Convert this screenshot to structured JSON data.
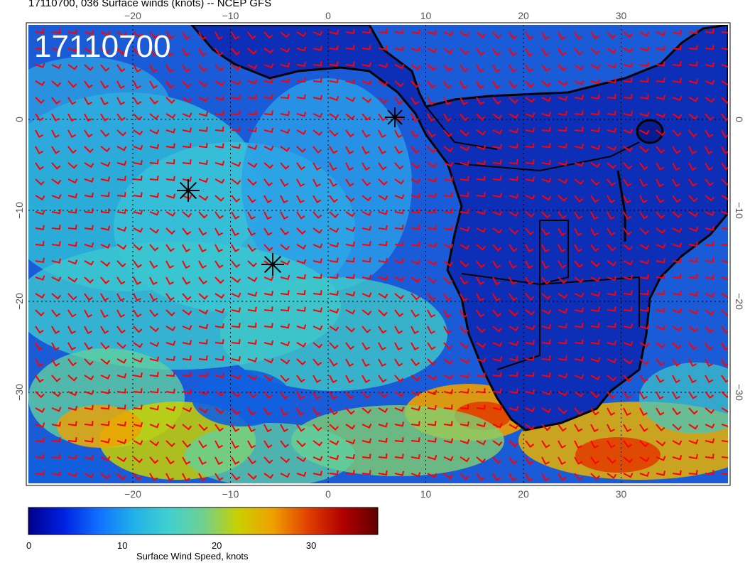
{
  "title": "17110700, 036 Surface winds (knots) -- NCEP GFS",
  "stamp": "17110700",
  "lon_ticks": [
    "−20",
    "−10",
    "0",
    "10",
    "20",
    "30"
  ],
  "lat_ticks": [
    "0",
    "−10",
    "−20",
    "−30"
  ],
  "colorbar": {
    "label": "Surface Wind Speed, knots",
    "ticks": [
      "0",
      "10",
      "20",
      "30"
    ],
    "min": 0,
    "max": 37,
    "colors": [
      "#00008b",
      "#0020e0",
      "#1070ff",
      "#20b0e8",
      "#40d0d0",
      "#70d090",
      "#c8d000",
      "#f0a000",
      "#e04000",
      "#b00000",
      "#600000"
    ]
  },
  "colors": {
    "ocean_base": "#1a5cd8",
    "land_base": "#0d2fb8",
    "barb": "#ff0000",
    "coast": "#000000"
  },
  "markers": [
    "storm-marker",
    "storm-marker",
    "storm-marker"
  ]
}
